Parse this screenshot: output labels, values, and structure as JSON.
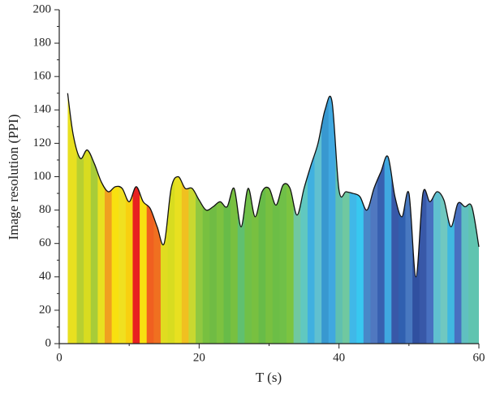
{
  "chart_data": {
    "type": "area",
    "x_label": "T (s)",
    "y_label": "Image resolution (PPI)",
    "x": [
      1.2,
      2,
      3,
      4,
      5,
      6,
      7,
      8,
      9,
      10,
      11,
      12,
      13,
      14,
      15,
      16,
      17,
      18,
      19,
      20,
      21,
      22,
      23,
      24,
      25,
      26,
      27,
      28,
      29,
      30,
      31,
      32,
      33,
      34,
      35,
      36,
      37,
      38,
      39,
      40,
      41,
      42,
      43,
      44,
      45,
      46,
      47,
      48,
      49,
      50,
      51,
      52,
      53,
      54,
      55,
      56,
      57,
      58,
      59,
      60
    ],
    "values": [
      150,
      125,
      111,
      116,
      108,
      97,
      91,
      94,
      93,
      85,
      94,
      85,
      81,
      70,
      60,
      93,
      100,
      93,
      93,
      86,
      80,
      82,
      85,
      82,
      93,
      70,
      93,
      76,
      91,
      93,
      83,
      95,
      93,
      77,
      93,
      107,
      120,
      140,
      145,
      92,
      91,
      90,
      88,
      80,
      93,
      103,
      112,
      88,
      76,
      90,
      40,
      90,
      85,
      91,
      86,
      70,
      84,
      82,
      82,
      58
    ],
    "colors": [
      "#e8e020",
      "#e8e020",
      "#b8d030",
      "#d8dc20",
      "#a8cc38",
      "#e8e020",
      "#f0a020",
      "#f8e010",
      "#f0e020",
      "#f8d010",
      "#e82020",
      "#f8e010",
      "#f06020",
      "#f07020",
      "#e0dc20",
      "#d8dc20",
      "#e8e020",
      "#f0c020",
      "#c8d830",
      "#90c840",
      "#78c040",
      "#70bc44",
      "#7cc240",
      "#68bc48",
      "#78c040",
      "#60c070",
      "#70c048",
      "#78c040",
      "#68bc48",
      "#78c040",
      "#6cbe46",
      "#70c048",
      "#7cc440",
      "#70c8a0",
      "#60c8c0",
      "#40b0e0",
      "#60c0d0",
      "#3898d0",
      "#40a8e0",
      "#60c0b0",
      "#70c8a0",
      "#40b8e8",
      "#38c8f0",
      "#4888c8",
      "#5078c0",
      "#3860b0",
      "#40a8e0",
      "#3858a8",
      "#3060b0",
      "#4878c0",
      "#3050a0",
      "#3858a8",
      "#4870c0",
      "#60c0d0",
      "#70c8c0",
      "#40b8e0",
      "#4870c0",
      "#60c0c0",
      "#60c4b0",
      "#60c4b0"
    ],
    "xlim": [
      0,
      60
    ],
    "xticks": [
      0,
      20,
      40,
      60
    ],
    "ylim": [
      0,
      200
    ],
    "yticks": [
      0,
      20,
      40,
      60,
      80,
      100,
      120,
      140,
      160,
      180,
      200
    ]
  }
}
